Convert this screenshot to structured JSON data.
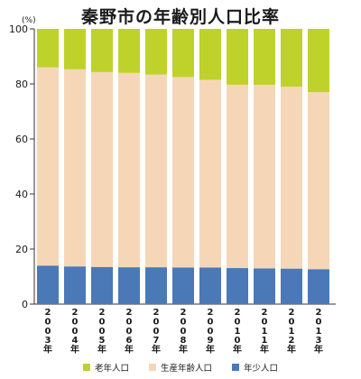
{
  "chart_data": {
    "type": "bar",
    "stacked": true,
    "title": "秦野市の年齢別人口比率",
    "unit": "(%)",
    "ylim": [
      0,
      100
    ],
    "yticks": [
      0,
      20,
      40,
      60,
      80,
      100
    ],
    "categories": [
      "2003年",
      "2004年",
      "2005年",
      "2006年",
      "2007年",
      "2008年",
      "2009年",
      "2010年",
      "2011年",
      "2012年",
      "2013年"
    ],
    "series": [
      {
        "name": "年少人口",
        "color": "#4b79b8",
        "values": [
          14.0,
          13.7,
          13.5,
          13.4,
          13.4,
          13.3,
          13.3,
          13.1,
          13.0,
          12.9,
          12.7
        ]
      },
      {
        "name": "生産年齢人口",
        "color": "#f5d7b8",
        "values": [
          72.0,
          71.6,
          70.8,
          70.6,
          70.0,
          69.2,
          68.2,
          66.6,
          66.7,
          66.1,
          64.3
        ]
      },
      {
        "name": "老年人口",
        "color": "#bfd22b",
        "values": [
          14.0,
          14.7,
          15.7,
          16.0,
          16.6,
          17.5,
          18.5,
          20.3,
          20.3,
          21.0,
          23.0
        ]
      }
    ],
    "legend_order": [
      "老年人口",
      "生産年齢人口",
      "年少人口"
    ],
    "legend_position": "bottom"
  }
}
